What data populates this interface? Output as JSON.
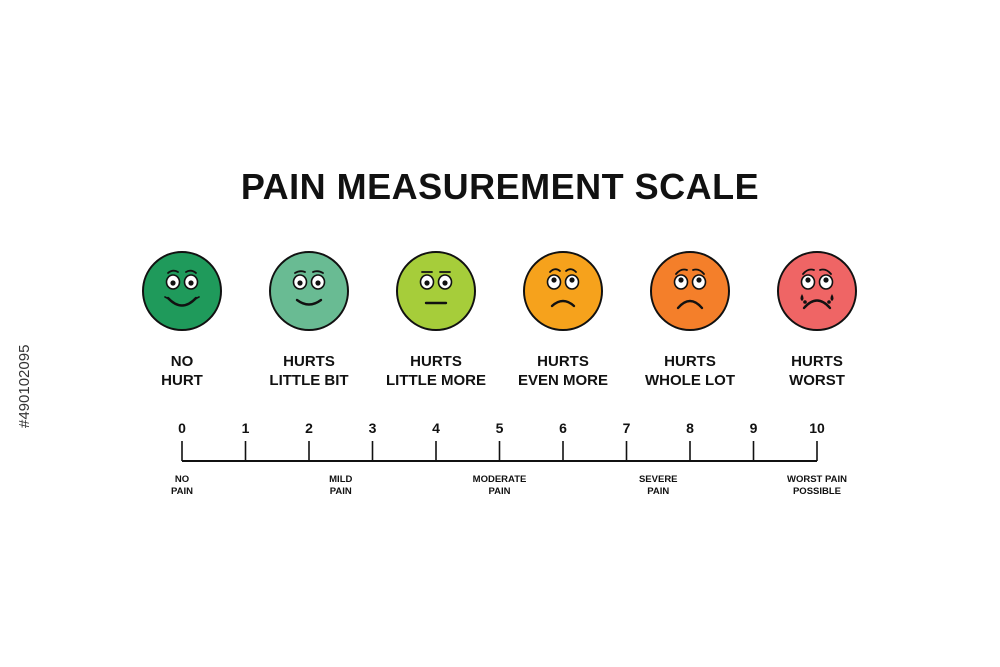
{
  "title": "PAIN MEASUREMENT SCALE",
  "faces": [
    {
      "line1": "NO",
      "line2": "HURT",
      "color": "#1f9a5b",
      "mood": "big-smile"
    },
    {
      "line1": "HURTS",
      "line2": "LITTLE BIT",
      "color": "#69bb93",
      "mood": "smile"
    },
    {
      "line1": "HURTS",
      "line2": "LITTLE MORE",
      "color": "#a6cd3a",
      "mood": "neutral"
    },
    {
      "line1": "HURTS",
      "line2": "EVEN MORE",
      "color": "#f6a21c",
      "mood": "slight-frown"
    },
    {
      "line1": "HURTS",
      "line2": "WHOLE LOT",
      "color": "#f47f2a",
      "mood": "frown"
    },
    {
      "line1": "HURTS",
      "line2": "WORST",
      "color": "#ef6565",
      "mood": "crying"
    }
  ],
  "scale": {
    "ticks": [
      "0",
      "1",
      "2",
      "3",
      "4",
      "5",
      "6",
      "7",
      "8",
      "9",
      "10"
    ],
    "descriptors": [
      {
        "at": 0,
        "line1": "NO",
        "line2": "PAIN"
      },
      {
        "at": 2.5,
        "line1": "MILD",
        "line2": "PAIN"
      },
      {
        "at": 5,
        "line1": "MODERATE",
        "line2": "PAIN"
      },
      {
        "at": 7.5,
        "line1": "SEVERE",
        "line2": "PAIN"
      },
      {
        "at": 10,
        "line1": "WORST PAIN",
        "line2": "POSSIBLE"
      }
    ]
  },
  "stock_id": "#490102095"
}
